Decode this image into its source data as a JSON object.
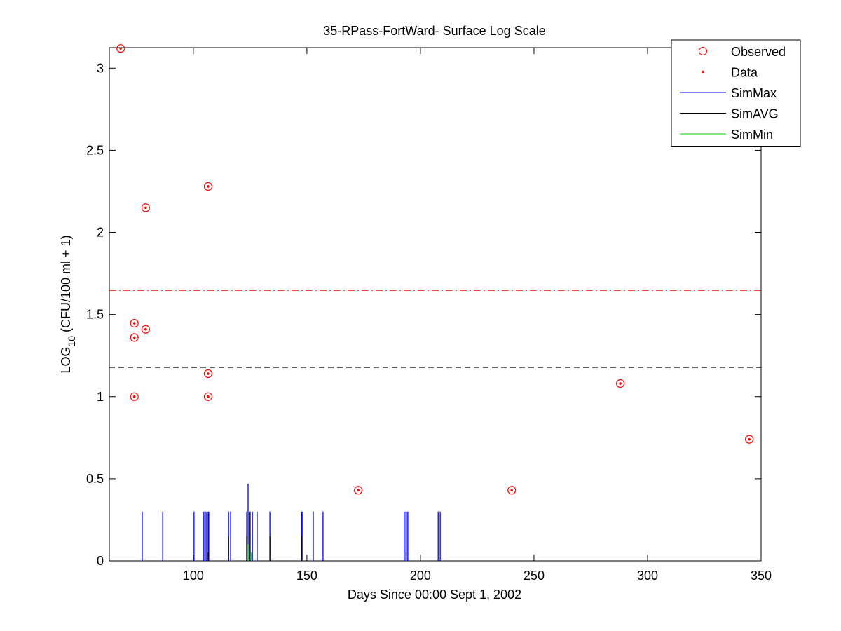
{
  "chart_data": {
    "type": "scatter",
    "title": "35-RPass-FortWard- Surface Log Scale",
    "xlabel": "Days Since 00:00 Sept 1, 2002",
    "ylabel": {
      "main": "LOG",
      "sub": "10",
      "rest": " (CFU/100 ml + 1)"
    },
    "xlim": [
      63,
      350
    ],
    "xticks": [
      100,
      150,
      200,
      250,
      300,
      350
    ],
    "ylim": [
      0,
      3.125
    ],
    "yticks": [
      0,
      0.5,
      1,
      1.5,
      2,
      2.5,
      3
    ],
    "legend": "top-right",
    "series": [
      {
        "name": "Observed",
        "kind": "circle",
        "color": "#ff0000",
        "x": [
          68,
          74,
          74,
          74,
          79,
          79,
          106.5,
          106.5,
          106.5,
          172.6,
          240.2,
          288,
          344.8
        ],
        "values": [
          3.12,
          1.447,
          1.36,
          1.0,
          2.15,
          1.41,
          2.28,
          1.14,
          1.0,
          0.43,
          0.43,
          1.08,
          0.74
        ]
      },
      {
        "name": "Data",
        "kind": "dot",
        "color": "#ff0000",
        "x": [
          68,
          74,
          74,
          74,
          79,
          79,
          106.5,
          106.5,
          106.5,
          172.6,
          240.2,
          288,
          344.8
        ],
        "values": [
          3.12,
          1.447,
          1.36,
          1.0,
          2.15,
          1.41,
          2.28,
          1.14,
          1.0,
          0.43,
          0.43,
          1.08,
          0.74
        ]
      },
      {
        "name": "SimMax",
        "kind": "stem",
        "color": "#0000ff",
        "x": [
          77.5,
          86.5,
          100.3,
          104.4,
          105,
          105.6,
          106.5,
          106.8,
          115.5,
          116.4,
          123.5,
          124.1,
          125,
          126,
          128.1,
          133.7,
          147.6,
          147.9,
          152.8,
          157.1,
          192.9,
          193.6,
          194.2,
          194.8,
          207.8,
          208.7
        ],
        "values": [
          0.3,
          0.3,
          0.3,
          0.3,
          0.3,
          0.3,
          0.3,
          0.3,
          0.3,
          0.3,
          0.3,
          0.47,
          0.3,
          0.3,
          0.3,
          0.3,
          0.3,
          0.3,
          0.3,
          0.3,
          0.3,
          0.3,
          0.3,
          0.3,
          0.3,
          0.3
        ]
      },
      {
        "name": "SimAVG",
        "kind": "stem",
        "color": "#000000",
        "x": [
          106.5,
          115.5,
          123.5,
          125,
          133.7,
          147.6,
          193.6
        ],
        "values": [
          0.05,
          0.15,
          0.15,
          0.3,
          0.15,
          0.15,
          0.05
        ]
      },
      {
        "name": "SimMin",
        "kind": "stem",
        "color": "#00cc00",
        "x": [
          124.1,
          125.6
        ],
        "values": [
          0.1,
          0.05
        ]
      }
    ],
    "hlines": [
      {
        "value": 1.647,
        "color": "#ff0000",
        "style": "dashdot"
      },
      {
        "value": 1.178,
        "color": "#000000",
        "style": "dashed"
      }
    ]
  }
}
